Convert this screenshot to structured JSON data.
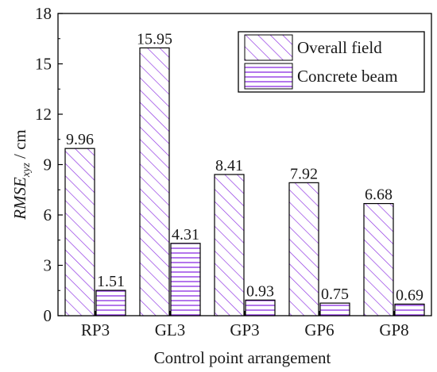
{
  "chart_data": {
    "type": "bar",
    "title": "",
    "xlabel": "Control point arrangement",
    "ylabel": {
      "main": "RMSE",
      "sub": "xyz",
      "unit": " / cm"
    },
    "categories": [
      "RP3",
      "GL3",
      "GP3",
      "GP6",
      "GP8"
    ],
    "series": [
      {
        "name": "Overall field",
        "values": [
          9.96,
          15.95,
          8.41,
          7.92,
          6.68
        ],
        "labels": [
          "9.96",
          "15.95",
          "8.41",
          "7.92",
          "6.68"
        ],
        "pattern": "diagonal-hatch"
      },
      {
        "name": "Concrete beam",
        "values": [
          1.51,
          4.31,
          0.93,
          0.75,
          0.69
        ],
        "labels": [
          "1.51",
          "4.31",
          "0.93",
          "0.75",
          "0.69"
        ],
        "pattern": "horizontal-hatch"
      }
    ],
    "ylim": [
      0,
      18
    ],
    "yticks": [
      0,
      3,
      6,
      9,
      12,
      15,
      18
    ],
    "legend_position": "top-right",
    "colors": {
      "hatch": "#8a2be2",
      "frame": "#000000"
    }
  }
}
